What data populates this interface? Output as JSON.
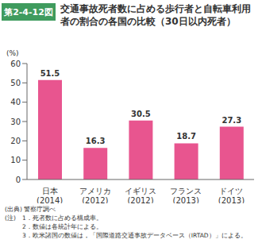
{
  "chart_data": {
    "type": "bar",
    "figure_label": "第2-4-12図",
    "title": "交通事故死者数に占める歩行者と自転車利用者の割合の各国の比較（30日以内死者）",
    "y_unit_label": "(%)",
    "categories": [
      "日本\n(2014)",
      "アメリカ\n(2012)",
      "イギリス\n(2012)",
      "フランス\n(2013)",
      "ドイツ\n(2013)"
    ],
    "values": [
      51.5,
      16.3,
      30.5,
      18.7,
      27.3
    ],
    "color": "#e8558f",
    "ylim": [
      0,
      60
    ],
    "yticks": [
      0,
      10,
      20,
      30,
      40,
      50,
      60
    ],
    "grid": false,
    "data_labels": true,
    "source": "(出典) 警察庁調べ",
    "notes_label": "(注)",
    "notes": [
      "1．死者数に占める構成率。",
      "2．数値は各統計年による。",
      "3．欧米諸国の数値は，「国際道路交通事故データベース（IRTAD）」による。"
    ]
  }
}
